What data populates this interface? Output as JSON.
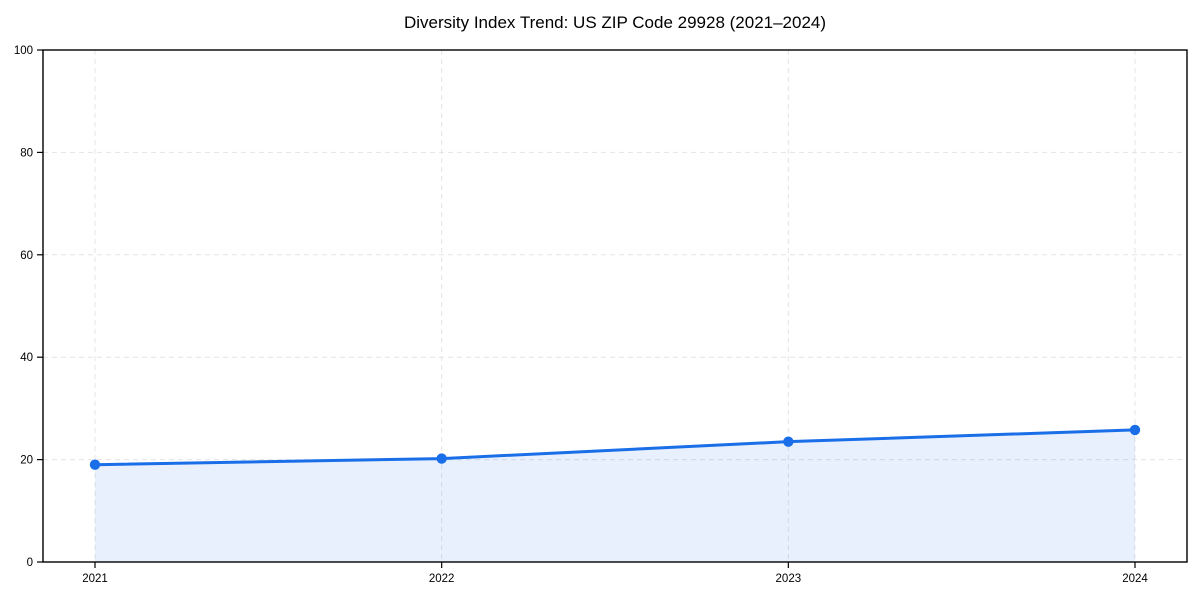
{
  "chart_data": {
    "type": "area",
    "title": "Diversity Index Trend: US ZIP Code 29928 (2021–2024)",
    "series_name": "Diversity Index",
    "categories": [
      "2021",
      "2022",
      "2023",
      "2024"
    ],
    "values": [
      19.0,
      20.2,
      23.5,
      25.8
    ],
    "xlabel": "",
    "ylabel": "",
    "ylim": [
      0,
      100
    ],
    "yticks": [
      0,
      20,
      40,
      60,
      80,
      100
    ],
    "grid": true,
    "grid_style": "dashed",
    "legend_position": "none",
    "line_color": "#1a6ee8",
    "marker_color": "#1a6ee8",
    "fill_color": "rgba(26, 110, 232, 0.10)",
    "grid_color": "#e4e4e4",
    "axis_color": "#000000",
    "background_color": "#ffffff"
  }
}
